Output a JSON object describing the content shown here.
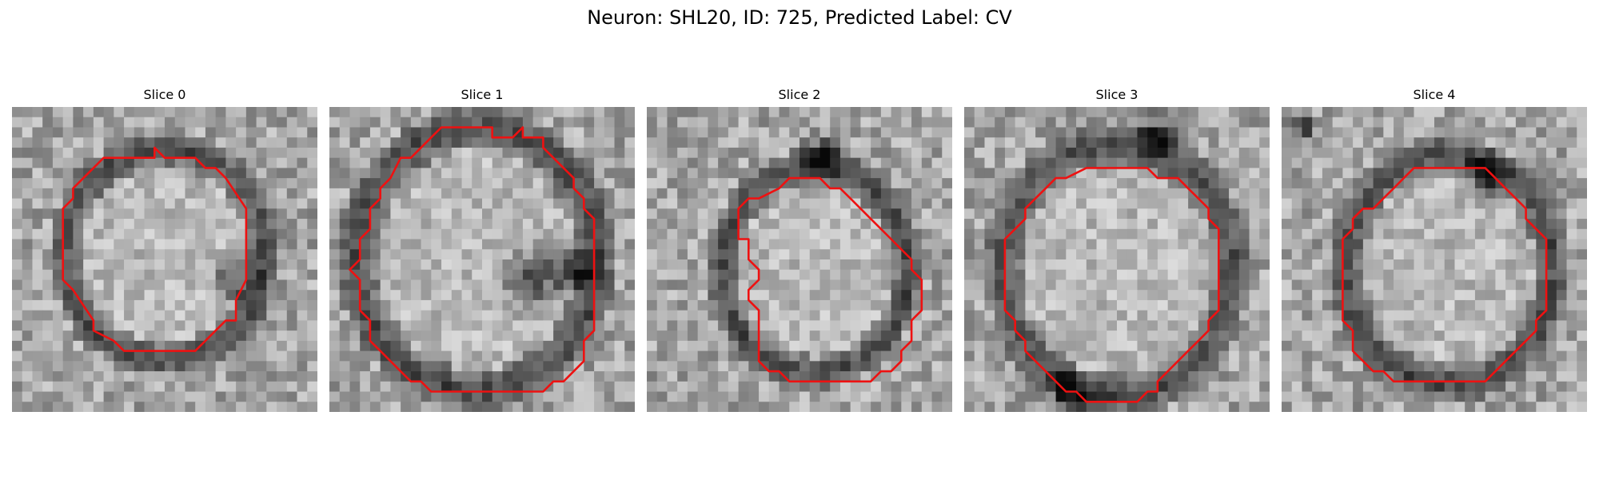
{
  "figure": {
    "title": "Neuron: SHL20, ID: 725, Predicted Label: CV"
  },
  "panels": [
    {
      "title": "Slice 0",
      "seed": 11,
      "variant": 0
    },
    {
      "title": "Slice 1",
      "seed": 23,
      "variant": 1
    },
    {
      "title": "Slice 2",
      "seed": 37,
      "variant": 2
    },
    {
      "title": "Slice 3",
      "seed": 49,
      "variant": 3
    },
    {
      "title": "Slice 4",
      "seed": 61,
      "variant": 4
    }
  ],
  "colors": {
    "contour": "#ee1111"
  }
}
